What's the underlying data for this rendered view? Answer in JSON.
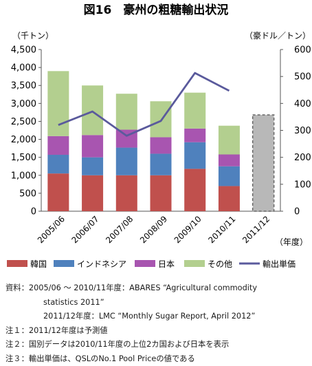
{
  "chart_data": {
    "type": "bar",
    "title": "図16　豪州の粗糖輸出状況",
    "y_left_unit": "（千トン）",
    "y_right_unit": "（豪ドル／トン）",
    "x_unit": "（年度）",
    "categories": [
      "2005/06",
      "2006/07",
      "2007/08",
      "2008/09",
      "2009/10",
      "2010/11",
      "2011/12"
    ],
    "y_left_ticks": [
      "0",
      "500",
      "1,000",
      "1,500",
      "2,000",
      "2,500",
      "3,000",
      "3,500",
      "4,000",
      "4,500"
    ],
    "y_right_ticks": [
      "0",
      "100",
      "200",
      "300",
      "400",
      "500",
      "600"
    ],
    "ylim_left": [
      0,
      4500
    ],
    "ylim_right": [
      0,
      600
    ],
    "stacked": true,
    "series": [
      {
        "name": "韓国",
        "color": "#c0504d",
        "values": [
          1050,
          1000,
          1000,
          1000,
          1180,
          700,
          null
        ]
      },
      {
        "name": "インドネシア",
        "color": "#4f81bd",
        "values": [
          520,
          500,
          770,
          600,
          740,
          550,
          null
        ]
      },
      {
        "name": "日本",
        "color": "#a855b0",
        "values": [
          520,
          620,
          500,
          460,
          380,
          330,
          null
        ]
      },
      {
        "name": "その他",
        "color": "#b3cf8f",
        "values": [
          1810,
          1380,
          1000,
          1000,
          1000,
          800,
          null
        ]
      }
    ],
    "forecast": {
      "category": "2011/12",
      "value": 2680,
      "color": "#b8b8b8",
      "border": "#666666"
    },
    "line_series": {
      "name": "輸出単価",
      "color": "#5a5a9c",
      "axis": "right",
      "values": [
        320,
        370,
        280,
        335,
        513,
        447,
        null
      ]
    },
    "grid": false
  },
  "notes": [
    "資料：2005/06 ～ 2010/11年度：ABARES “Agricultural commodity",
    "statistics 2011”",
    "2011/12年度：LMC “Monthly Sugar Report, April 2012”",
    "注１：2011/12年度は予測値",
    "注２：国別データは2010/11年度の上位2カ国および日本を表示",
    "注３：輸出単価は、QSLのNo.1 Pool Priceの値である"
  ]
}
